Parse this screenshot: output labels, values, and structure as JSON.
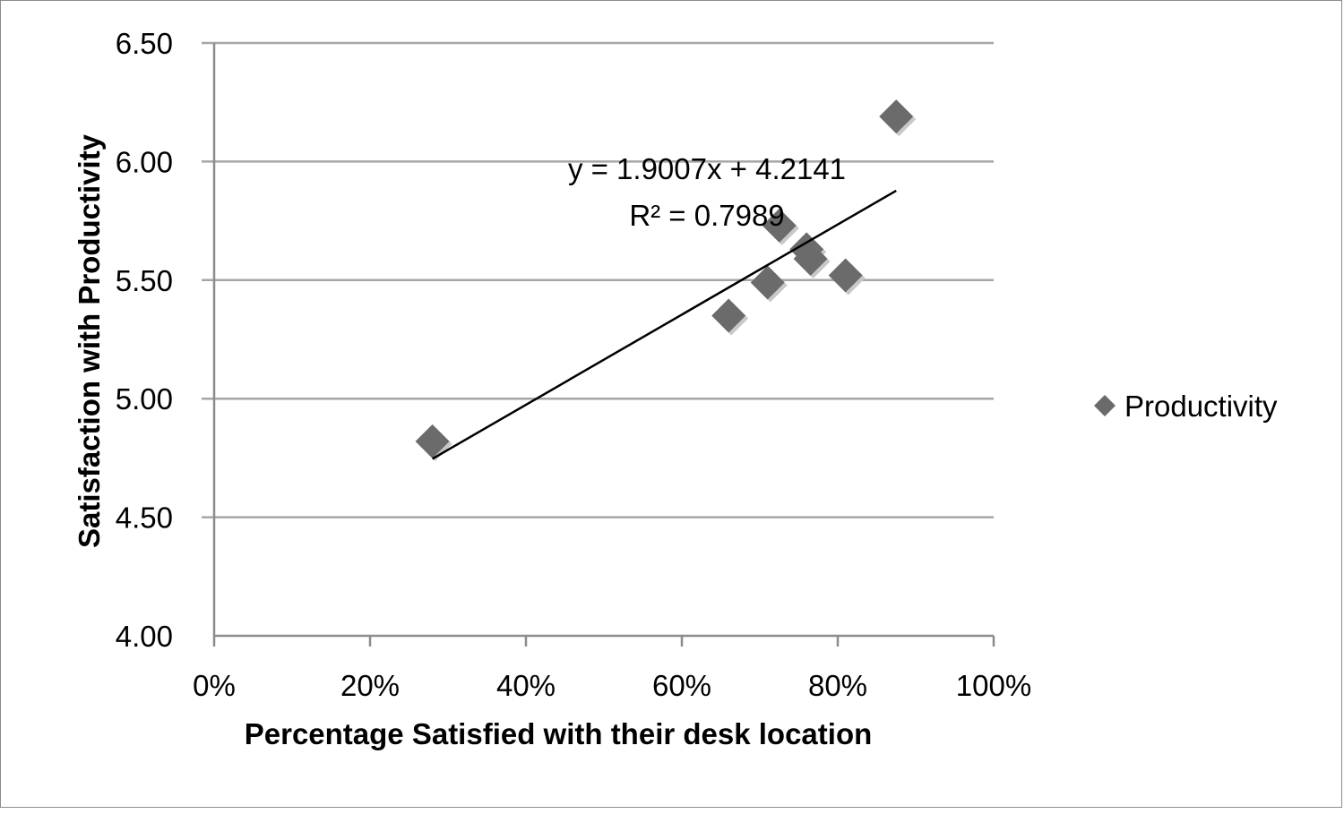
{
  "chart_data": {
    "type": "scatter",
    "xlabel": "Percentage Satisfied with their desk location",
    "ylabel": "Satisfaction with Productivity",
    "xlim": [
      0,
      1
    ],
    "ylim": [
      4.0,
      6.5
    ],
    "x_ticks": [
      0,
      0.2,
      0.4,
      0.6,
      0.8,
      1.0
    ],
    "x_tick_labels": [
      "0%",
      "20%",
      "40%",
      "60%",
      "80%",
      "100%"
    ],
    "y_ticks": [
      4.0,
      4.5,
      5.0,
      5.5,
      6.0,
      6.5
    ],
    "y_tick_labels": [
      "4.00",
      "4.50",
      "5.00",
      "5.50",
      "6.00",
      "6.50"
    ],
    "grid": "horizontal",
    "legend_position": "right",
    "series": [
      {
        "name": "Productivity",
        "marker": "diamond",
        "color": "#6b6b6b",
        "x": [
          0.28,
          0.66,
          0.71,
          0.725,
          0.76,
          0.765,
          0.81,
          0.875
        ],
        "y": [
          4.82,
          5.35,
          5.49,
          5.73,
          5.63,
          5.59,
          5.52,
          6.19
        ]
      }
    ],
    "trendline": {
      "type": "linear",
      "slope": 1.9007,
      "intercept": 4.2141,
      "x_range": [
        0.28,
        0.875
      ],
      "equation_label": "y = 1.9007x + 4.2141",
      "r2_label": "R² = 0.7989"
    },
    "colors": {
      "gridline": "#a6a6a6",
      "axis": "#8c8c8c",
      "marker": "#6b6b6b",
      "trendline": "#000000"
    }
  }
}
